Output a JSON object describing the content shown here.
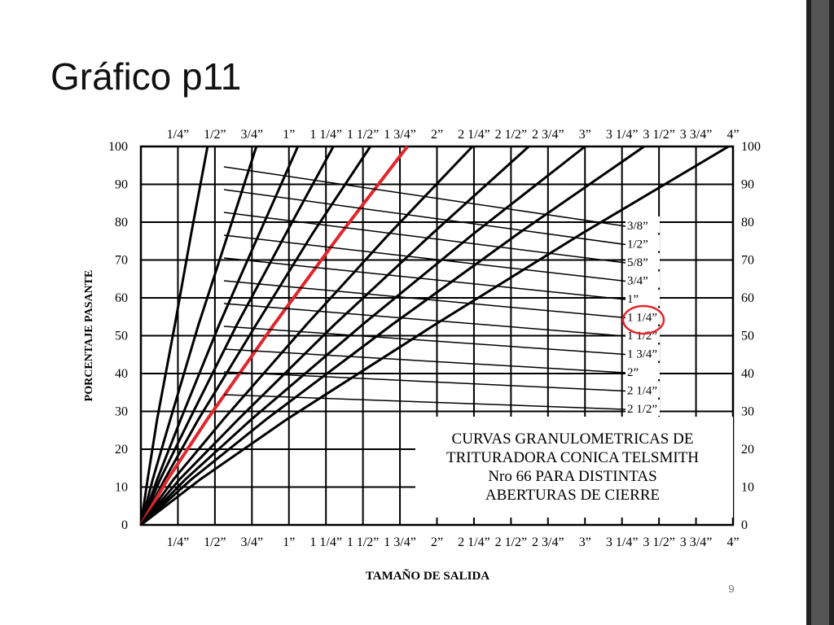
{
  "title": "Gráfico p11",
  "page_number": "9",
  "chart_data": {
    "type": "line",
    "ylabel": "PORCENTAJE PASANTE",
    "xlabel": "TAMAÑO DE SALIDA",
    "annotation": [
      "CURVAS GRANULOMETRICAS DE",
      "TRITURADORA CONICA TELSMITH",
      "Nro 66 PARA DISTINTAS",
      "ABERTURAS DE CIERRE"
    ],
    "xlim": [
      0,
      4
    ],
    "ylim": [
      0,
      100
    ],
    "grid": true,
    "xticks": [
      {
        "value": 0.25,
        "label": "1/4”"
      },
      {
        "value": 0.5,
        "label": "1/2”"
      },
      {
        "value": 0.75,
        "label": "3/4”"
      },
      {
        "value": 1,
        "label": "1”"
      },
      {
        "value": 1.25,
        "label": "1 1/4”"
      },
      {
        "value": 1.5,
        "label": "1 1/2”"
      },
      {
        "value": 1.75,
        "label": "1 3/4”"
      },
      {
        "value": 2,
        "label": "2”"
      },
      {
        "value": 2.25,
        "label": "2 1/4”"
      },
      {
        "value": 2.5,
        "label": "2 1/2”"
      },
      {
        "value": 2.75,
        "label": "2 3/4”"
      },
      {
        "value": 3,
        "label": "3”"
      },
      {
        "value": 3.25,
        "label": "3 1/4”"
      },
      {
        "value": 3.5,
        "label": "3 1/2”"
      },
      {
        "value": 3.75,
        "label": "3 3/4”"
      },
      {
        "value": 4,
        "label": "4”"
      }
    ],
    "yticks": [
      0,
      10,
      20,
      30,
      40,
      50,
      60,
      70,
      80,
      90,
      100
    ],
    "series": [
      {
        "name": "3/8”",
        "color": "#000000",
        "x": [
          0,
          0.045,
          0.11,
          0.23,
          0.34,
          0.45
        ],
        "values": [
          0,
          12,
          28,
          53,
          77,
          100
        ]
      },
      {
        "name": "1/2”",
        "color": "#000000",
        "x": [
          0,
          0.08,
          0.2,
          0.39,
          0.59,
          0.78
        ],
        "values": [
          0,
          12,
          28,
          53,
          77,
          100
        ]
      },
      {
        "name": "5/8”",
        "color": "#000000",
        "x": [
          0,
          0.11,
          0.27,
          0.53,
          0.8,
          1.06
        ],
        "values": [
          0,
          12,
          28,
          53,
          77,
          100
        ]
      },
      {
        "name": "3/4”",
        "color": "#000000",
        "x": [
          0,
          0.13,
          0.33,
          0.65,
          0.98,
          1.3
        ],
        "values": [
          0,
          12,
          28,
          53,
          77,
          100
        ]
      },
      {
        "name": "1”",
        "color": "#000000",
        "x": [
          0,
          0.16,
          0.39,
          0.78,
          1.16,
          1.55
        ],
        "values": [
          0,
          12,
          28,
          53,
          77,
          100
        ]
      },
      {
        "name": "1 1/4”",
        "color": "#e0262b",
        "x": [
          0,
          0.18,
          0.45,
          0.9,
          1.35,
          1.8
        ],
        "values": [
          0,
          12,
          28,
          53,
          77,
          100
        ]
      },
      {
        "name": "1 1/2”",
        "color": "#000000",
        "x": [
          0,
          0.22,
          0.56,
          1.12,
          1.68,
          2.24
        ],
        "values": [
          0,
          12,
          28,
          53,
          77,
          100
        ]
      },
      {
        "name": "1 3/4”",
        "color": "#000000",
        "x": [
          0,
          0.26,
          0.66,
          1.31,
          1.97,
          2.62
        ],
        "values": [
          0,
          12,
          28,
          53,
          77,
          100
        ]
      },
      {
        "name": "2”",
        "color": "#000000",
        "x": [
          0,
          0.3,
          0.75,
          1.5,
          2.25,
          3
        ],
        "values": [
          0,
          12,
          28,
          53,
          77,
          100
        ]
      },
      {
        "name": "2 1/4”",
        "color": "#000000",
        "x": [
          0,
          0.34,
          0.85,
          1.7,
          2.55,
          3.4
        ],
        "values": [
          0,
          12,
          28,
          53,
          77,
          100
        ]
      },
      {
        "name": "2 1/2”",
        "color": "#000000",
        "x": [
          0,
          0.4,
          0.99,
          1.99,
          2.98,
          3.97
        ],
        "values": [
          0,
          12,
          28,
          53,
          77,
          100
        ]
      }
    ]
  }
}
